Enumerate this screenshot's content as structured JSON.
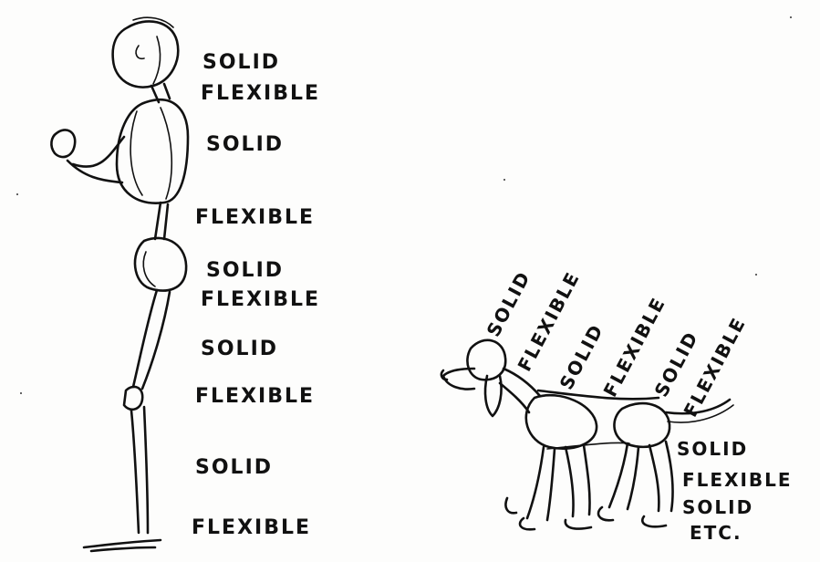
{
  "human": {
    "labels": [
      "SOLID",
      "FLEXIBLE",
      "SOLID",
      "FLEXIBLE",
      "SOLID",
      "FLEXIBLE",
      "SOLID",
      "FLEXIBLE",
      "SOLID",
      "FLEXIBLE"
    ]
  },
  "dog": {
    "angled_labels": [
      "SOLID",
      "FLEXIBLE",
      "SOLID",
      "FLEXIBLE",
      "SOLID",
      "FLEXIBLE"
    ],
    "side_labels": [
      "SOLID",
      "FLEXIBLE",
      "SOLID",
      "ETC."
    ]
  }
}
